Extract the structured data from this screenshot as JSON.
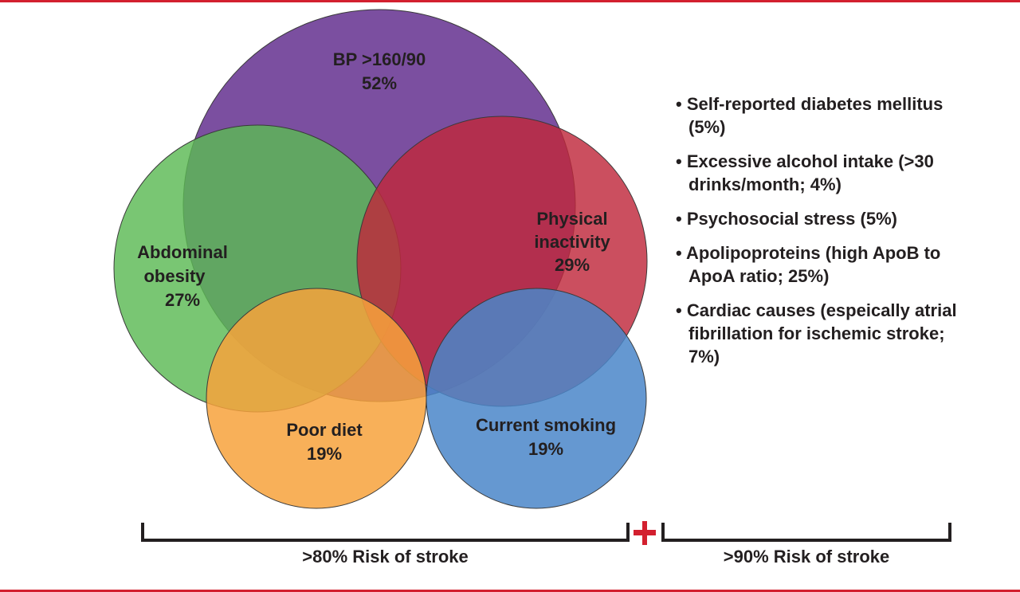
{
  "circles": [
    {
      "label": "BP >160/90",
      "value": "52%",
      "color": "#7b4fa0"
    },
    {
      "label": "Abdominal",
      "label2": "obesity",
      "value": "27%",
      "color": "#5cb954"
    },
    {
      "label": "Physical",
      "label2": "inactivity",
      "value": "29%",
      "color": "#c0283c"
    },
    {
      "label": "Poor diet",
      "value": "19%",
      "color": "#f7a23c"
    },
    {
      "label": "Current smoking",
      "value": "19%",
      "color": "#4a86c9"
    }
  ],
  "list": [
    "Self-reported diabetes mellitus (5%)",
    "Excessive alcohol intake (>30 drinks/month; 4%)",
    "Psychosocial stress (5%)",
    "Apolipoproteins (high ApoB to ApoA ratio; 25%)",
    "Cardiac causes (espeically atrial fibrillation for ischemic stroke; 7%)"
  ],
  "brackets": {
    "left": ">80% Risk of stroke",
    "right": ">90% Risk of stroke",
    "plus_color": "#d3202f"
  }
}
